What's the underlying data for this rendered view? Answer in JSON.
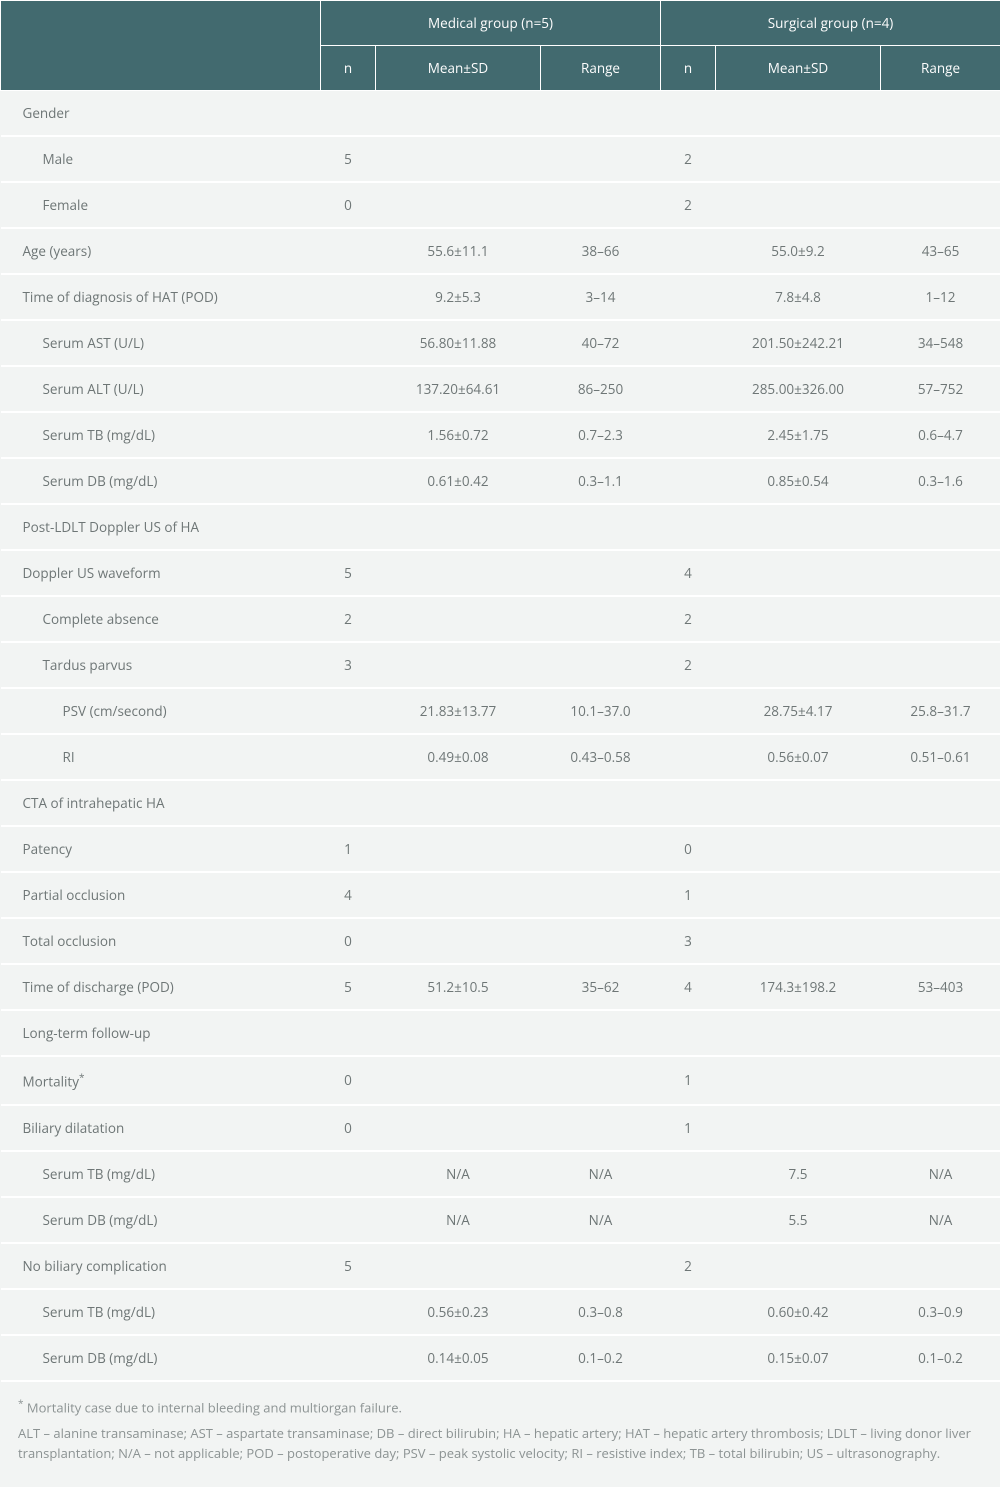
{
  "header": {
    "blank": "",
    "group1": "Medical group (n=5)",
    "group2": "Surgical group (n=4)",
    "sub_n": "n",
    "sub_mean": "Mean±SD",
    "sub_range": "Range"
  },
  "rows": [
    {
      "label": "Gender",
      "indent": 0,
      "g1": {
        "n": "",
        "mean": "",
        "range": ""
      },
      "g2": {
        "n": "",
        "mean": "",
        "range": ""
      }
    },
    {
      "label": "Male",
      "indent": 1,
      "g1": {
        "n": "5",
        "mean": "",
        "range": ""
      },
      "g2": {
        "n": "2",
        "mean": "",
        "range": ""
      }
    },
    {
      "label": "Female",
      "indent": 1,
      "g1": {
        "n": "0",
        "mean": "",
        "range": ""
      },
      "g2": {
        "n": "2",
        "mean": "",
        "range": ""
      }
    },
    {
      "label": "Age (years)",
      "indent": 0,
      "g1": {
        "n": "",
        "mean": "55.6±11.1",
        "range": "38–66"
      },
      "g2": {
        "n": "",
        "mean": "55.0±9.2",
        "range": "43–65"
      }
    },
    {
      "label": "Time of diagnosis of HAT (POD)",
      "indent": 0,
      "g1": {
        "n": "",
        "mean": "9.2±5.3",
        "range": "3–14"
      },
      "g2": {
        "n": "",
        "mean": "7.8±4.8",
        "range": "1–12"
      }
    },
    {
      "label": "Serum AST (U/L)",
      "indent": 1,
      "g1": {
        "n": "",
        "mean": "56.80±11.88",
        "range": "40–72"
      },
      "g2": {
        "n": "",
        "mean": "201.50±242.21",
        "range": "34–548"
      }
    },
    {
      "label": "Serum ALT (U/L)",
      "indent": 1,
      "g1": {
        "n": "",
        "mean": "137.20±64.61",
        "range": "86–250"
      },
      "g2": {
        "n": "",
        "mean": "285.00±326.00",
        "range": "57–752"
      }
    },
    {
      "label": "Serum TB (mg/dL)",
      "indent": 1,
      "g1": {
        "n": "",
        "mean": "1.56±0.72",
        "range": "0.7–2.3"
      },
      "g2": {
        "n": "",
        "mean": "2.45±1.75",
        "range": "0.6–4.7"
      }
    },
    {
      "label": "Serum DB (mg/dL)",
      "indent": 1,
      "g1": {
        "n": "",
        "mean": "0.61±0.42",
        "range": "0.3–1.1"
      },
      "g2": {
        "n": "",
        "mean": "0.85±0.54",
        "range": "0.3–1.6"
      }
    },
    {
      "label": "Post-LDLT Doppler US of HA",
      "indent": 0,
      "g1": {
        "n": "",
        "mean": "",
        "range": ""
      },
      "g2": {
        "n": "",
        "mean": "",
        "range": ""
      }
    },
    {
      "label": "Doppler US waveform",
      "indent": 0,
      "g1": {
        "n": "5",
        "mean": "",
        "range": ""
      },
      "g2": {
        "n": "4",
        "mean": "",
        "range": ""
      }
    },
    {
      "label": "Complete absence",
      "indent": 1,
      "g1": {
        "n": "2",
        "mean": "",
        "range": ""
      },
      "g2": {
        "n": "2",
        "mean": "",
        "range": ""
      }
    },
    {
      "label": "Tardus parvus",
      "indent": 1,
      "g1": {
        "n": "3",
        "mean": "",
        "range": ""
      },
      "g2": {
        "n": "2",
        "mean": "",
        "range": ""
      }
    },
    {
      "label": "PSV (cm/second)",
      "indent": 2,
      "g1": {
        "n": "",
        "mean": "21.83±13.77",
        "range": "10.1–37.0"
      },
      "g2": {
        "n": "",
        "mean": "28.75±4.17",
        "range": "25.8–31.7"
      }
    },
    {
      "label": "RI",
      "indent": 2,
      "g1": {
        "n": "",
        "mean": "0.49±0.08",
        "range": "0.43–0.58"
      },
      "g2": {
        "n": "",
        "mean": "0.56±0.07",
        "range": "0.51–0.61"
      }
    },
    {
      "label": "CTA of intrahepatic HA",
      "indent": 0,
      "g1": {
        "n": "",
        "mean": "",
        "range": ""
      },
      "g2": {
        "n": "",
        "mean": "",
        "range": ""
      }
    },
    {
      "label": "Patency",
      "indent": 0,
      "g1": {
        "n": "1",
        "mean": "",
        "range": ""
      },
      "g2": {
        "n": "0",
        "mean": "",
        "range": ""
      }
    },
    {
      "label": "Partial occlusion",
      "indent": 0,
      "g1": {
        "n": "4",
        "mean": "",
        "range": ""
      },
      "g2": {
        "n": "1",
        "mean": "",
        "range": ""
      }
    },
    {
      "label": "Total occlusion",
      "indent": 0,
      "g1": {
        "n": "0",
        "mean": "",
        "range": ""
      },
      "g2": {
        "n": "3",
        "mean": "",
        "range": ""
      }
    },
    {
      "label": "Time of discharge (POD)",
      "indent": 0,
      "g1": {
        "n": "5",
        "mean": "51.2±10.5",
        "range": "35–62"
      },
      "g2": {
        "n": "4",
        "mean": "174.3±198.2",
        "range": "53–403"
      }
    },
    {
      "label": "Long-term follow-up",
      "indent": 0,
      "g1": {
        "n": "",
        "mean": "",
        "range": ""
      },
      "g2": {
        "n": "",
        "mean": "",
        "range": ""
      }
    },
    {
      "label": "Mortality*",
      "indent": 0,
      "sup": true,
      "g1": {
        "n": "0",
        "mean": "",
        "range": ""
      },
      "g2": {
        "n": "1",
        "mean": "",
        "range": ""
      }
    },
    {
      "label": "Biliary dilatation",
      "indent": 0,
      "g1": {
        "n": "0",
        "mean": "",
        "range": ""
      },
      "g2": {
        "n": "1",
        "mean": "",
        "range": ""
      }
    },
    {
      "label": "Serum TB (mg/dL)",
      "indent": 1,
      "g1": {
        "n": "",
        "mean": "N/A",
        "range": "N/A"
      },
      "g2": {
        "n": "",
        "mean": "7.5",
        "range": "N/A"
      }
    },
    {
      "label": "Serum DB (mg/dL)",
      "indent": 1,
      "g1": {
        "n": "",
        "mean": "N/A",
        "range": "N/A"
      },
      "g2": {
        "n": "",
        "mean": "5.5",
        "range": "N/A"
      }
    },
    {
      "label": "No biliary complication",
      "indent": 0,
      "g1": {
        "n": "5",
        "mean": "",
        "range": ""
      },
      "g2": {
        "n": "2",
        "mean": "",
        "range": ""
      }
    },
    {
      "label": "Serum TB (mg/dL)",
      "indent": 1,
      "g1": {
        "n": "",
        "mean": "0.56±0.23",
        "range": "0.3–0.8"
      },
      "g2": {
        "n": "",
        "mean": "0.60±0.42",
        "range": "0.3–0.9"
      }
    },
    {
      "label": "Serum DB (mg/dL)",
      "indent": 1,
      "g1": {
        "n": "",
        "mean": "0.14±0.05",
        "range": "0.1–0.2"
      },
      "g2": {
        "n": "",
        "mean": "0.15±0.07",
        "range": "0.1–0.2"
      }
    }
  ],
  "footnotes": {
    "note1_prefix": "*",
    "note1": " Mortality case due to internal bleeding and multiorgan failure.",
    "note2": "ALT – alanine transaminase; AST – aspartate transaminase; DB – direct bilirubin; HA – hepatic artery; HAT – hepatic artery thrombosis; LDLT – living donor liver transplantation; N/A – not applicable; POD – postoperative day; PSV – peak systolic velocity; RI – resistive index; TB – total bilirubin; US – ultrasonography."
  },
  "style": {
    "header_bg": "#426a6f",
    "header_fg": "#fdfdfd",
    "body_bg": "#f2f4f3",
    "row_border": "#ffffff",
    "text_color": "#6e7676",
    "footnote_color": "#8c9393",
    "font_size_pt": 10
  }
}
